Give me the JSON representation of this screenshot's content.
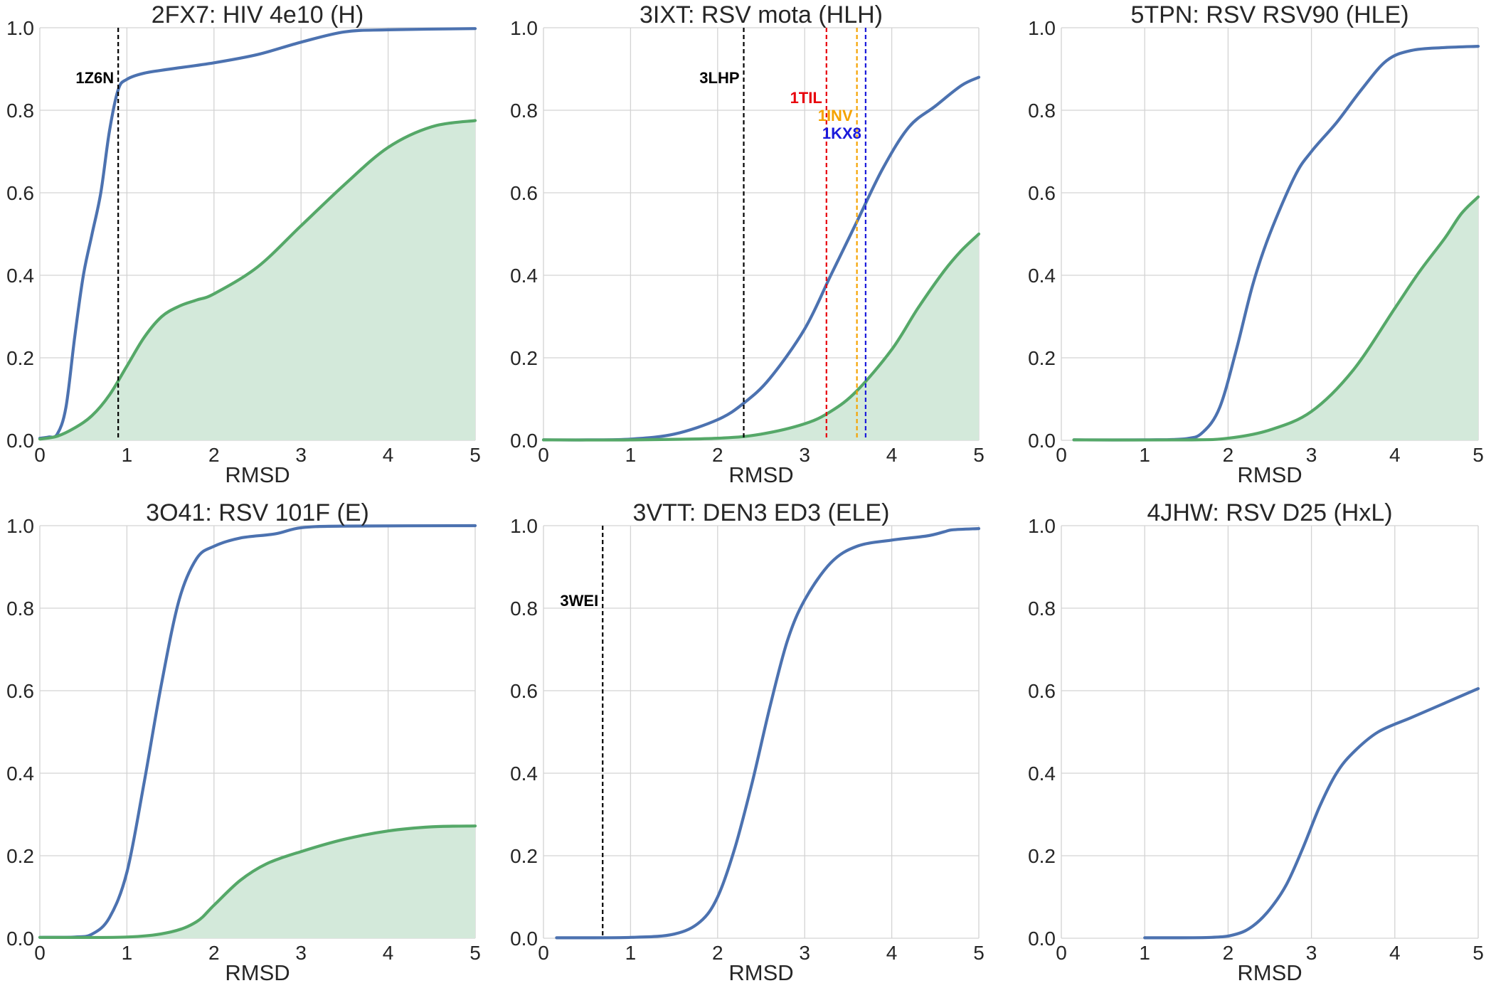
{
  "figure": {
    "colors": {
      "blue": "#4c72b0",
      "green": "#55a868",
      "fill": "#d3e9da",
      "grid": "#d3d3d3"
    }
  },
  "chart_data": [
    {
      "type": "line",
      "title": "2FX7: HIV 4e10 (H)",
      "xlabel": "RMSD",
      "ylabel": "",
      "xlim": [
        0,
        5
      ],
      "ylim": [
        0,
        1
      ],
      "xticks": [
        "0",
        "1",
        "2",
        "3",
        "4",
        "5"
      ],
      "yticks": [
        "0.0",
        "0.2",
        "0.4",
        "0.6",
        "0.8",
        "1.0"
      ],
      "grid": true,
      "series": [
        {
          "color": "#4c72b0",
          "fill": false,
          "points": [
            [
              0,
              0.005
            ],
            [
              0.1,
              0.008
            ],
            [
              0.2,
              0.015
            ],
            [
              0.3,
              0.08
            ],
            [
              0.4,
              0.25
            ],
            [
              0.5,
              0.4
            ],
            [
              0.6,
              0.5
            ],
            [
              0.7,
              0.6
            ],
            [
              0.8,
              0.75
            ],
            [
              0.9,
              0.85
            ],
            [
              1.0,
              0.875
            ],
            [
              1.2,
              0.89
            ],
            [
              1.5,
              0.9
            ],
            [
              2.0,
              0.915
            ],
            [
              2.5,
              0.935
            ],
            [
              3.0,
              0.965
            ],
            [
              3.5,
              0.99
            ],
            [
              4.0,
              0.995
            ],
            [
              5.0,
              0.998
            ]
          ]
        },
        {
          "color": "#55a868",
          "fill": true,
          "points": [
            [
              0,
              0.003
            ],
            [
              0.2,
              0.01
            ],
            [
              0.4,
              0.03
            ],
            [
              0.6,
              0.06
            ],
            [
              0.8,
              0.11
            ],
            [
              1.0,
              0.18
            ],
            [
              1.2,
              0.25
            ],
            [
              1.4,
              0.3
            ],
            [
              1.6,
              0.325
            ],
            [
              1.8,
              0.34
            ],
            [
              2.0,
              0.355
            ],
            [
              2.5,
              0.42
            ],
            [
              3.0,
              0.52
            ],
            [
              3.5,
              0.62
            ],
            [
              4.0,
              0.71
            ],
            [
              4.5,
              0.76
            ],
            [
              5.0,
              0.775
            ]
          ]
        }
      ],
      "annotations": [
        {
          "x": 0.9,
          "label": "1Z6N",
          "color": "#000000"
        }
      ]
    },
    {
      "type": "line",
      "title": "3IXT: RSV mota (HLH)",
      "xlabel": "RMSD",
      "ylabel": "",
      "xlim": [
        0,
        5
      ],
      "ylim": [
        0,
        1
      ],
      "xticks": [
        "0",
        "1",
        "2",
        "3",
        "4",
        "5"
      ],
      "yticks": [
        "0.0",
        "0.2",
        "0.4",
        "0.6",
        "0.8",
        "1.0"
      ],
      "grid": true,
      "series": [
        {
          "color": "#4c72b0",
          "fill": false,
          "points": [
            [
              0,
              0.001
            ],
            [
              0.5,
              0.001
            ],
            [
              1.0,
              0.003
            ],
            [
              1.5,
              0.015
            ],
            [
              2.0,
              0.05
            ],
            [
              2.3,
              0.09
            ],
            [
              2.6,
              0.15
            ],
            [
              3.0,
              0.27
            ],
            [
              3.3,
              0.4
            ],
            [
              3.6,
              0.53
            ],
            [
              3.9,
              0.66
            ],
            [
              4.2,
              0.76
            ],
            [
              4.5,
              0.81
            ],
            [
              4.8,
              0.86
            ],
            [
              5.0,
              0.88
            ]
          ]
        },
        {
          "color": "#55a868",
          "fill": true,
          "points": [
            [
              0,
              0.001
            ],
            [
              1.0,
              0.001
            ],
            [
              2.0,
              0.005
            ],
            [
              2.5,
              0.015
            ],
            [
              3.0,
              0.04
            ],
            [
              3.3,
              0.07
            ],
            [
              3.6,
              0.12
            ],
            [
              4.0,
              0.22
            ],
            [
              4.3,
              0.32
            ],
            [
              4.6,
              0.41
            ],
            [
              4.8,
              0.46
            ],
            [
              5.0,
              0.5
            ]
          ]
        }
      ],
      "annotations": [
        {
          "x": 2.3,
          "label": "3LHP",
          "color": "#000000"
        },
        {
          "x": 3.25,
          "label": "1TIL",
          "color": "#e8000b"
        },
        {
          "x": 3.6,
          "label": "1INV",
          "color": "#f5a300"
        },
        {
          "x": 3.7,
          "label": "1KX8",
          "color": "#1a1adb"
        }
      ]
    },
    {
      "type": "line",
      "title": "5TPN: RSV RSV90 (HLE)",
      "xlabel": "RMSD",
      "ylabel": "",
      "xlim": [
        0,
        5
      ],
      "ylim": [
        0,
        1
      ],
      "xticks": [
        "0",
        "1",
        "2",
        "3",
        "4",
        "5"
      ],
      "yticks": [
        "0.0",
        "0.2",
        "0.4",
        "0.6",
        "0.8",
        "1.0"
      ],
      "grid": true,
      "series": [
        {
          "color": "#4c72b0",
          "fill": false,
          "points": [
            [
              0.15,
              0.001
            ],
            [
              1.0,
              0.001
            ],
            [
              1.5,
              0.004
            ],
            [
              1.7,
              0.02
            ],
            [
              1.9,
              0.08
            ],
            [
              2.1,
              0.22
            ],
            [
              2.3,
              0.38
            ],
            [
              2.5,
              0.5
            ],
            [
              2.8,
              0.64
            ],
            [
              3.0,
              0.7
            ],
            [
              3.3,
              0.77
            ],
            [
              3.6,
              0.85
            ],
            [
              3.9,
              0.92
            ],
            [
              4.2,
              0.945
            ],
            [
              4.6,
              0.952
            ],
            [
              5.0,
              0.955
            ]
          ]
        },
        {
          "color": "#55a868",
          "fill": true,
          "points": [
            [
              0.15,
              0.001
            ],
            [
              1.5,
              0.001
            ],
            [
              2.0,
              0.005
            ],
            [
              2.5,
              0.025
            ],
            [
              3.0,
              0.07
            ],
            [
              3.5,
              0.17
            ],
            [
              4.0,
              0.32
            ],
            [
              4.3,
              0.41
            ],
            [
              4.6,
              0.49
            ],
            [
              4.8,
              0.55
            ],
            [
              5.0,
              0.59
            ]
          ]
        }
      ],
      "annotations": []
    },
    {
      "type": "line",
      "title": "3O41: RSV 101F (E)",
      "xlabel": "RMSD",
      "ylabel": "",
      "xlim": [
        0,
        5
      ],
      "ylim": [
        0,
        1
      ],
      "xticks": [
        "0",
        "1",
        "2",
        "3",
        "4",
        "5"
      ],
      "yticks": [
        "0.0",
        "0.2",
        "0.4",
        "0.6",
        "0.8",
        "1.0"
      ],
      "grid": true,
      "series": [
        {
          "color": "#4c72b0",
          "fill": false,
          "points": [
            [
              0,
              0.002
            ],
            [
              0.4,
              0.003
            ],
            [
              0.6,
              0.01
            ],
            [
              0.8,
              0.05
            ],
            [
              1.0,
              0.16
            ],
            [
              1.2,
              0.38
            ],
            [
              1.4,
              0.62
            ],
            [
              1.6,
              0.82
            ],
            [
              1.8,
              0.92
            ],
            [
              2.0,
              0.95
            ],
            [
              2.3,
              0.97
            ],
            [
              2.7,
              0.98
            ],
            [
              3.0,
              0.995
            ],
            [
              3.5,
              0.999
            ],
            [
              5.0,
              1.0
            ]
          ]
        },
        {
          "color": "#55a868",
          "fill": true,
          "points": [
            [
              0,
              0.002
            ],
            [
              1.0,
              0.003
            ],
            [
              1.5,
              0.015
            ],
            [
              1.8,
              0.04
            ],
            [
              2.0,
              0.08
            ],
            [
              2.3,
              0.14
            ],
            [
              2.6,
              0.18
            ],
            [
              3.0,
              0.21
            ],
            [
              3.5,
              0.24
            ],
            [
              4.0,
              0.26
            ],
            [
              4.5,
              0.27
            ],
            [
              5.0,
              0.272
            ]
          ]
        }
      ],
      "annotations": []
    },
    {
      "type": "line",
      "title": "3VTT: DEN3 ED3 (ELE)",
      "xlabel": "RMSD",
      "ylabel": "",
      "xlim": [
        0,
        5
      ],
      "ylim": [
        0,
        1
      ],
      "xticks": [
        "0",
        "1",
        "2",
        "3",
        "4",
        "5"
      ],
      "yticks": [
        "0.0",
        "0.2",
        "0.4",
        "0.6",
        "0.8",
        "1.0"
      ],
      "grid": true,
      "series": [
        {
          "color": "#4c72b0",
          "fill": false,
          "points": [
            [
              0.15,
              0.001
            ],
            [
              1.0,
              0.002
            ],
            [
              1.5,
              0.01
            ],
            [
              1.8,
              0.04
            ],
            [
              2.0,
              0.1
            ],
            [
              2.2,
              0.22
            ],
            [
              2.4,
              0.38
            ],
            [
              2.6,
              0.56
            ],
            [
              2.8,
              0.72
            ],
            [
              3.0,
              0.82
            ],
            [
              3.3,
              0.91
            ],
            [
              3.6,
              0.95
            ],
            [
              4.0,
              0.965
            ],
            [
              4.4,
              0.975
            ],
            [
              4.6,
              0.985
            ],
            [
              4.7,
              0.99
            ],
            [
              5.0,
              0.993
            ]
          ]
        }
      ],
      "annotations": [
        {
          "x": 0.68,
          "label": "3WEI",
          "color": "#000000"
        }
      ]
    },
    {
      "type": "line",
      "title": "4JHW: RSV D25 (HxL)",
      "xlabel": "RMSD",
      "ylabel": "",
      "xlim": [
        0,
        5
      ],
      "ylim": [
        0,
        1
      ],
      "xticks": [
        "0",
        "1",
        "2",
        "3",
        "4",
        "5"
      ],
      "yticks": [
        "0.0",
        "0.2",
        "0.4",
        "0.6",
        "0.8",
        "1.0"
      ],
      "grid": true,
      "series": [
        {
          "color": "#4c72b0",
          "fill": false,
          "points": [
            [
              1.0,
              0.001
            ],
            [
              1.8,
              0.002
            ],
            [
              2.1,
              0.01
            ],
            [
              2.3,
              0.03
            ],
            [
              2.5,
              0.07
            ],
            [
              2.7,
              0.13
            ],
            [
              2.9,
              0.22
            ],
            [
              3.1,
              0.32
            ],
            [
              3.3,
              0.4
            ],
            [
              3.5,
              0.45
            ],
            [
              3.8,
              0.5
            ],
            [
              4.2,
              0.535
            ],
            [
              4.6,
              0.57
            ],
            [
              5.0,
              0.605
            ]
          ]
        }
      ],
      "annotations": []
    }
  ]
}
